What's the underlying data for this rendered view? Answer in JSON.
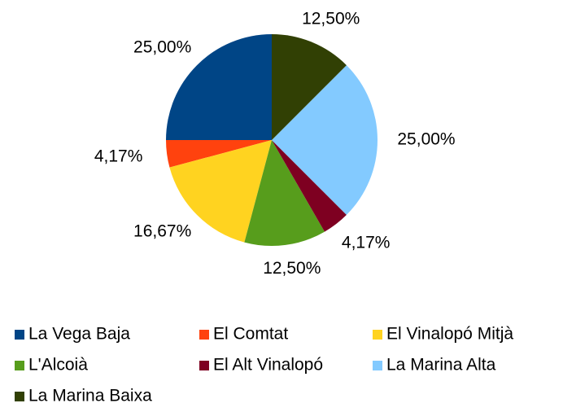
{
  "chart_data": {
    "type": "pie",
    "categories": [
      "La Vega Baja",
      "El Comtat",
      "El Vinalopó Mitjà",
      "L'Alcoià",
      "El Alt Vinalopó",
      "La Marina Alta",
      "La Marina Baixa"
    ],
    "values": [
      25,
      4.17,
      16.67,
      12.5,
      4.17,
      25,
      12.5
    ],
    "value_labels": [
      "25,00%",
      "4,17%",
      "16,67%",
      "12,50%",
      "4,17%",
      "25,00%",
      "12,50%"
    ],
    "colors": [
      "#004586",
      "#ff420e",
      "#ffd320",
      "#579d1c",
      "#7e0021",
      "#83caff",
      "#314004"
    ],
    "legend": "bottom"
  }
}
